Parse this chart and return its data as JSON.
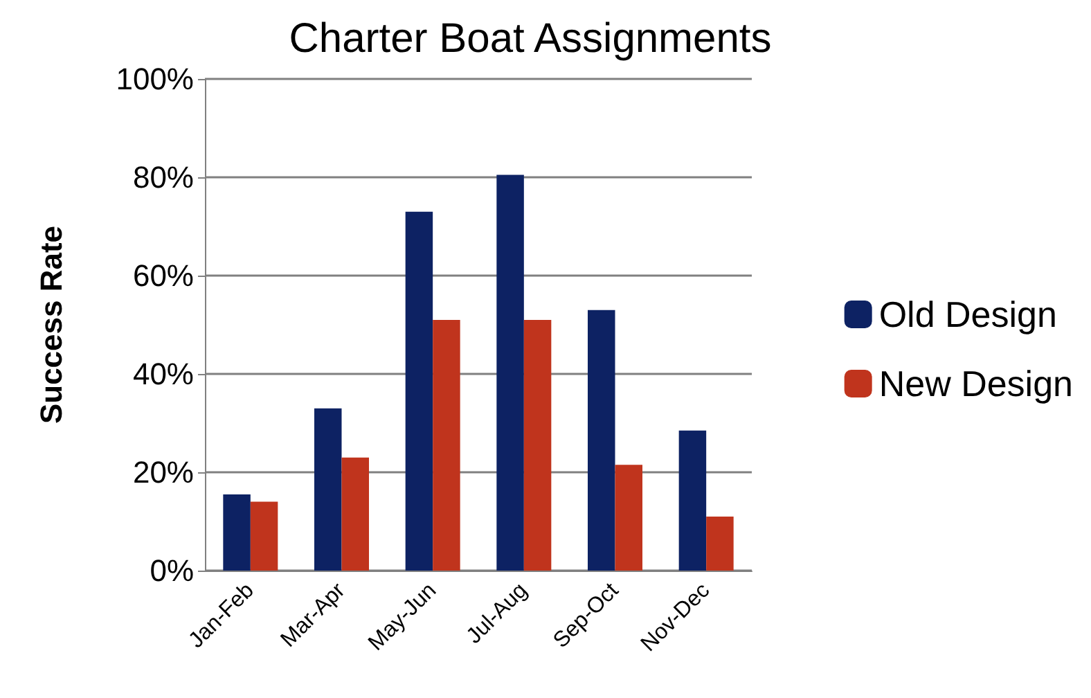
{
  "chart_data": {
    "type": "bar",
    "title": "Charter Boat Assignments",
    "ylabel": "Success Rate",
    "categories": [
      "Jan-Feb",
      "Mar-Apr",
      "May-Jun",
      "Jul-Aug",
      "Sep-Oct",
      "Nov-Dec"
    ],
    "series": [
      {
        "name": "Old Design",
        "color": "#0d2263",
        "values": [
          15.5,
          33,
          73,
          80.5,
          53,
          28.5
        ]
      },
      {
        "name": "New Design",
        "color": "#c0341d",
        "values": [
          14,
          23,
          51,
          51,
          21.5,
          11
        ]
      }
    ],
    "ylim": [
      0,
      100
    ],
    "yticks": [
      {
        "value": 0,
        "label": "0%"
      },
      {
        "value": 20,
        "label": "20%"
      },
      {
        "value": 40,
        "label": "40%"
      },
      {
        "value": 60,
        "label": "60%"
      },
      {
        "value": 80,
        "label": "80%"
      },
      {
        "value": 100,
        "label": "100%"
      }
    ],
    "grid": "y",
    "legend": "right"
  }
}
